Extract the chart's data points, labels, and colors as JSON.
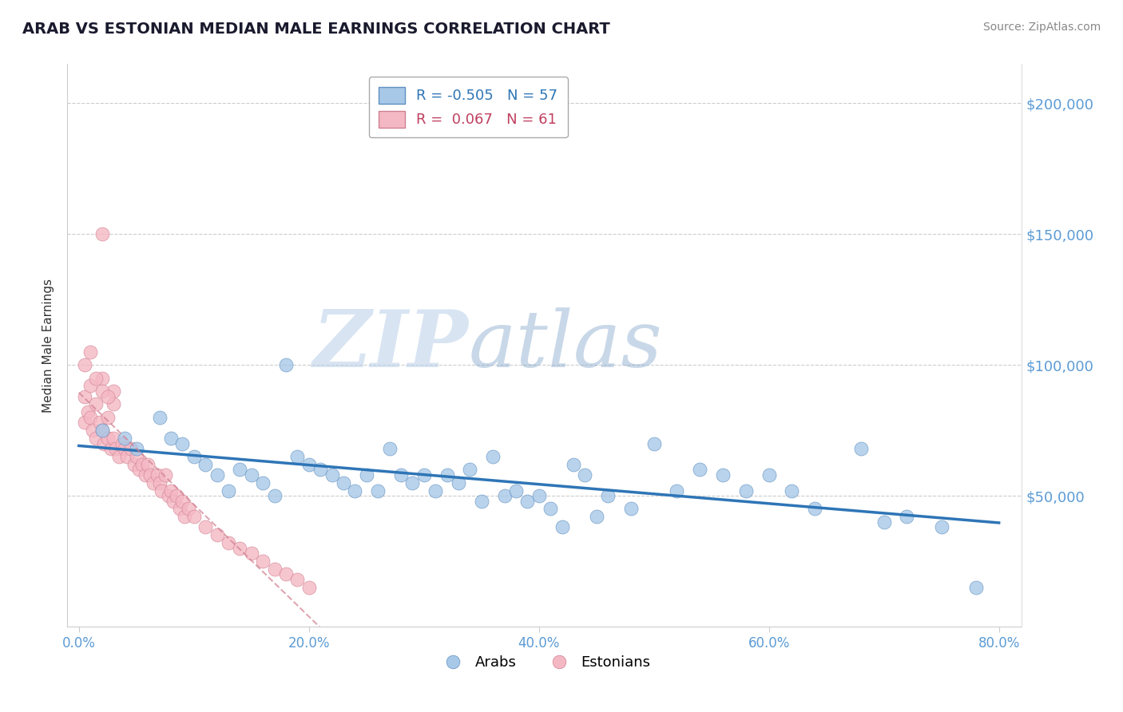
{
  "title": "ARAB VS ESTONIAN MEDIAN MALE EARNINGS CORRELATION CHART",
  "source": "Source: ZipAtlas.com",
  "tick_color": "#5b9bd5",
  "ylabel": "Median Male Earnings",
  "xlim": [
    -0.01,
    0.82
  ],
  "ylim": [
    0,
    215000
  ],
  "yticks": [
    50000,
    100000,
    150000,
    200000
  ],
  "ytick_labels": [
    "$50,000",
    "$100,000",
    "$150,000",
    "$200,000"
  ],
  "xtick_labels": [
    "0.0%",
    "20.0%",
    "40.0%",
    "60.0%",
    "80.0%"
  ],
  "xtick_positions": [
    0.0,
    0.2,
    0.4,
    0.6,
    0.8
  ],
  "arab_color": "#a8c8e8",
  "estonian_color": "#f4b8c4",
  "arab_line_color": "#2e75b6",
  "estonian_line_color": "#c0505a",
  "arab_r": -0.505,
  "arab_n": 57,
  "estonian_r": 0.067,
  "estonian_n": 61,
  "watermark_zip": "ZIP",
  "watermark_atlas": "atlas",
  "legend_arab_label": "Arabs",
  "legend_estonian_label": "Estonians",
  "arab_x": [
    0.02,
    0.04,
    0.05,
    0.07,
    0.08,
    0.09,
    0.1,
    0.11,
    0.12,
    0.13,
    0.14,
    0.15,
    0.16,
    0.17,
    0.18,
    0.19,
    0.2,
    0.21,
    0.22,
    0.23,
    0.24,
    0.25,
    0.26,
    0.27,
    0.28,
    0.29,
    0.3,
    0.31,
    0.32,
    0.33,
    0.34,
    0.35,
    0.36,
    0.37,
    0.38,
    0.39,
    0.4,
    0.41,
    0.42,
    0.43,
    0.44,
    0.45,
    0.46,
    0.48,
    0.5,
    0.52,
    0.54,
    0.56,
    0.58,
    0.6,
    0.62,
    0.64,
    0.68,
    0.7,
    0.72,
    0.75,
    0.78
  ],
  "arab_y": [
    75000,
    72000,
    68000,
    80000,
    72000,
    70000,
    65000,
    62000,
    58000,
    52000,
    60000,
    58000,
    55000,
    50000,
    100000,
    65000,
    62000,
    60000,
    58000,
    55000,
    52000,
    58000,
    52000,
    68000,
    58000,
    55000,
    58000,
    52000,
    58000,
    55000,
    60000,
    48000,
    65000,
    50000,
    52000,
    48000,
    50000,
    45000,
    38000,
    62000,
    58000,
    42000,
    50000,
    45000,
    70000,
    52000,
    60000,
    58000,
    52000,
    58000,
    52000,
    45000,
    68000,
    40000,
    42000,
    38000,
    15000
  ],
  "estonian_x": [
    0.005,
    0.008,
    0.01,
    0.012,
    0.015,
    0.018,
    0.02,
    0.022,
    0.025,
    0.028,
    0.03,
    0.032,
    0.035,
    0.038,
    0.04,
    0.042,
    0.045,
    0.048,
    0.05,
    0.052,
    0.055,
    0.058,
    0.06,
    0.062,
    0.065,
    0.068,
    0.07,
    0.072,
    0.075,
    0.078,
    0.08,
    0.082,
    0.085,
    0.088,
    0.09,
    0.092,
    0.095,
    0.1,
    0.11,
    0.12,
    0.13,
    0.14,
    0.15,
    0.16,
    0.17,
    0.18,
    0.19,
    0.2,
    0.02,
    0.03,
    0.005,
    0.01,
    0.015,
    0.02,
    0.025,
    0.03,
    0.005,
    0.01,
    0.015,
    0.02,
    0.025
  ],
  "estonian_y": [
    78000,
    82000,
    80000,
    75000,
    72000,
    78000,
    75000,
    70000,
    72000,
    68000,
    72000,
    68000,
    65000,
    70000,
    68000,
    65000,
    68000,
    62000,
    65000,
    60000,
    62000,
    58000,
    62000,
    58000,
    55000,
    58000,
    55000,
    52000,
    58000,
    50000,
    52000,
    48000,
    50000,
    45000,
    48000,
    42000,
    45000,
    42000,
    38000,
    35000,
    32000,
    30000,
    28000,
    25000,
    22000,
    20000,
    18000,
    15000,
    150000,
    85000,
    88000,
    92000,
    85000,
    95000,
    80000,
    90000,
    100000,
    105000,
    95000,
    90000,
    88000
  ]
}
